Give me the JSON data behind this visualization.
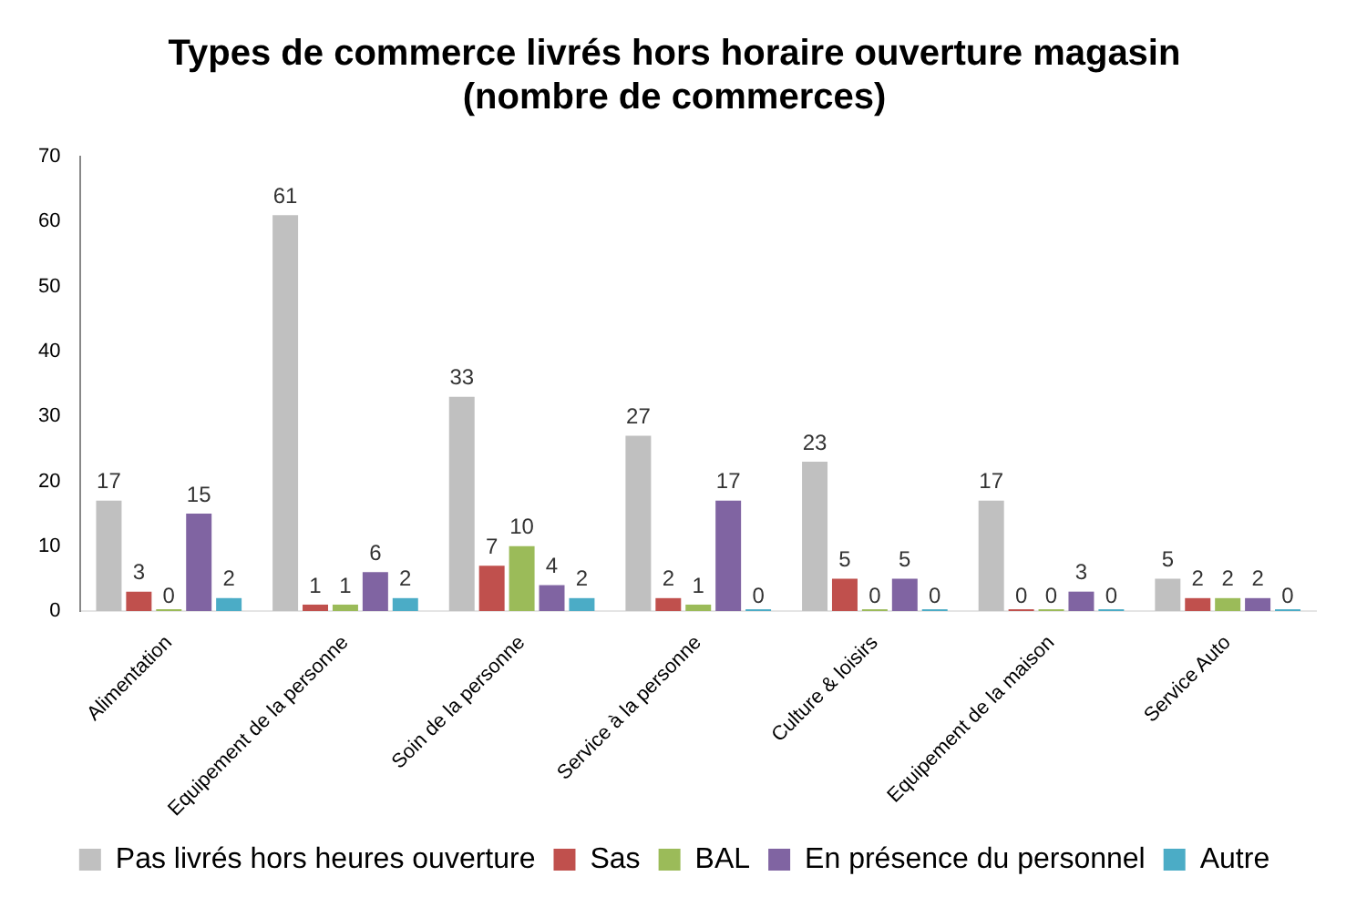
{
  "chart_data": {
    "type": "bar",
    "title": "Types de commerce livrés hors horaire ouverture magasin\n(nombre de commerces)",
    "categories": [
      "Alimentation",
      "Equipement de la personne",
      "Soin de la personne",
      "Service à la personne",
      "Culture & loisirs",
      "Equipement de la maison",
      "Service Auto"
    ],
    "series": [
      {
        "name": "Pas livrés hors heures ouverture",
        "color": "#c0c0c0",
        "values": [
          17,
          61,
          33,
          27,
          23,
          17,
          5
        ]
      },
      {
        "name": "Sas",
        "color": "#c0504d",
        "values": [
          3,
          1,
          7,
          2,
          5,
          0,
          2
        ]
      },
      {
        "name": "BAL",
        "color": "#9bbb59",
        "values": [
          0,
          1,
          10,
          1,
          0,
          0,
          2
        ]
      },
      {
        "name": "En présence du personnel",
        "color": "#8064a2",
        "values": [
          15,
          6,
          4,
          17,
          5,
          3,
          2
        ]
      },
      {
        "name": "Autre",
        "color": "#4bacc6",
        "values": [
          2,
          2,
          2,
          0,
          0,
          0,
          0
        ]
      }
    ],
    "ylim": [
      0,
      70
    ],
    "yticks": [
      0,
      10,
      20,
      30,
      40,
      50,
      60,
      70
    ],
    "grid": false,
    "legend": "bottom",
    "data_labels": true
  }
}
